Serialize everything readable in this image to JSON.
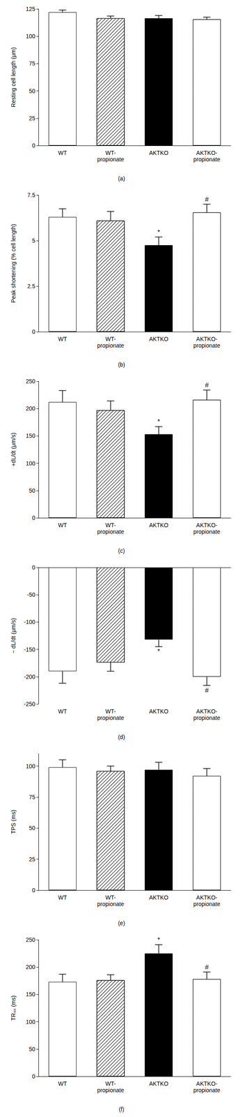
{
  "chart_data": [
    {
      "type": "bar",
      "caption": "(a)",
      "ylabel": "Resting cell length (μm)",
      "categories": [
        "WT",
        "WT-\npropionate",
        "AKTKO",
        "AKTKO-\npropionate"
      ],
      "values": [
        122,
        116.5,
        116.5,
        115.5
      ],
      "errors": [
        2,
        2,
        2.5,
        2
      ],
      "colors": [
        "#ffffff",
        "#ffffff",
        "#000000",
        "#ffffff"
      ],
      "annotations": [
        null,
        null,
        null,
        null
      ],
      "ylim": [
        0,
        125
      ],
      "yticks": [
        0,
        25,
        50,
        75,
        100,
        125
      ]
    },
    {
      "type": "bar",
      "caption": "(b)",
      "ylabel": "Peak shortening (% cell length)",
      "categories": [
        "WT",
        "WT-\npropionate",
        "AKTKO",
        "AKTKO-\npropionate"
      ],
      "values": [
        6.3,
        6.1,
        4.75,
        6.55
      ],
      "errors": [
        0.45,
        0.5,
        0.45,
        0.45
      ],
      "colors": [
        "#ffffff",
        "#ffffff",
        "#000000",
        "#ffffff"
      ],
      "annotations": [
        null,
        null,
        "*",
        "#"
      ],
      "ylim": [
        0,
        7.5
      ],
      "yticks": [
        0,
        2.5,
        5,
        7.5
      ]
    },
    {
      "type": "bar",
      "caption": "(c)",
      "ylabel": "+dL/dt (μm/s)",
      "categories": [
        "WT",
        "WT-\npropionate",
        "AKTKO",
        "AKTKO-\npropionate"
      ],
      "values": [
        212,
        197,
        153,
        216
      ],
      "errors": [
        21,
        17,
        14,
        18
      ],
      "colors": [
        "#ffffff",
        "#ffffff",
        "#000000",
        "#ffffff"
      ],
      "annotations": [
        null,
        null,
        "*",
        "#"
      ],
      "ylim": [
        0,
        250
      ],
      "yticks": [
        0,
        50,
        100,
        150,
        200,
        250
      ]
    },
    {
      "type": "bar",
      "caption": "(d)",
      "ylabel": "− dL/dt (μm/s)",
      "categories": [
        "WT",
        "WT-\npropionate",
        "AKTKO",
        "AKTKO-\npropionate"
      ],
      "values": [
        -190,
        -174,
        -132,
        -200
      ],
      "errors": [
        22,
        16,
        13,
        16
      ],
      "colors": [
        "#ffffff",
        "#ffffff",
        "#000000",
        "#ffffff"
      ],
      "annotations": [
        null,
        null,
        "*",
        "#"
      ],
      "ylim": [
        -250,
        0
      ],
      "yticks": [
        -250,
        -200,
        -150,
        -100,
        -50,
        0
      ]
    },
    {
      "type": "bar",
      "caption": "(e)",
      "ylabel": "TPS (ms)",
      "categories": [
        "WT",
        "WT-\npropionate",
        "AKTKO",
        "AKTKO-\npropionate"
      ],
      "values": [
        99,
        96,
        97,
        92
      ],
      "errors": [
        6,
        4,
        6,
        6
      ],
      "colors": [
        "#ffffff",
        "#ffffff",
        "#000000",
        "#ffffff"
      ],
      "annotations": [
        null,
        null,
        null,
        null
      ],
      "ylim": [
        0,
        110
      ],
      "yticks": [
        0,
        25,
        50,
        75,
        100
      ]
    },
    {
      "type": "bar",
      "caption": "(f)",
      "ylabel": "TR₉₀ (ms)",
      "categories": [
        "WT",
        "WT-\npropionate",
        "AKTKO",
        "AKTKO-\npropionate"
      ],
      "values": [
        173,
        176,
        225,
        178
      ],
      "errors": [
        14,
        10,
        16,
        13
      ],
      "colors": [
        "#ffffff",
        "#ffffff",
        "#000000",
        "#ffffff"
      ],
      "annotations": [
        null,
        null,
        "*",
        "#"
      ],
      "ylim": [
        0,
        250
      ],
      "yticks": [
        0,
        50,
        100,
        150,
        200,
        250
      ]
    }
  ]
}
